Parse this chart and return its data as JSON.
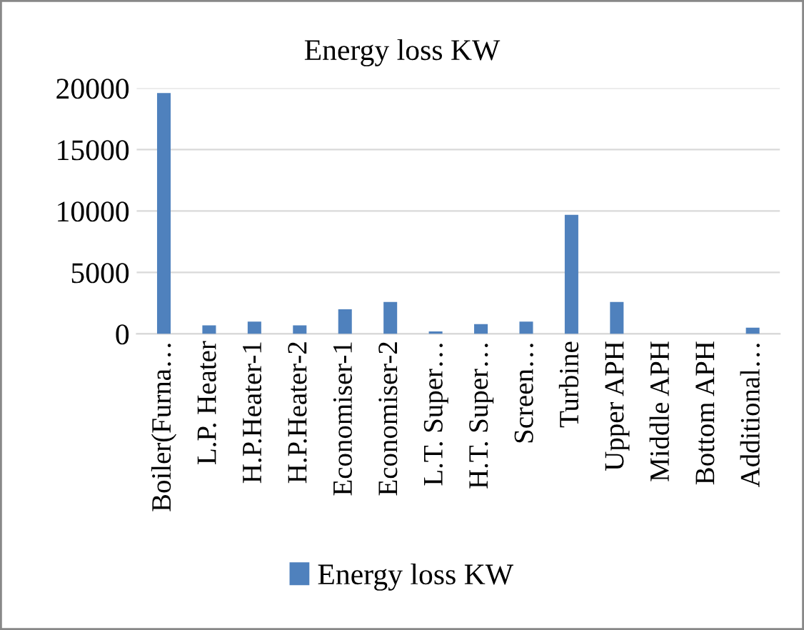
{
  "chart_data": {
    "type": "bar",
    "title": "Energy loss KW",
    "categories": [
      "Boiler(Furna…",
      "L.P. Heater",
      "H.P.Heater-1",
      "H.P.Heater-2",
      "Economiser-1",
      "Economiser-2",
      "L.T. Super…",
      "H.T. Super…",
      "Screen…",
      "Turbine",
      "Upper APH",
      "Middle APH",
      "Bottom APH",
      "Additional…"
    ],
    "series": [
      {
        "name": "Energy loss KW",
        "color": "#4f81bd",
        "values": [
          19600,
          700,
          1000,
          700,
          2000,
          2600,
          200,
          800,
          1000,
          9700,
          2600,
          0,
          0,
          500
        ]
      }
    ],
    "ylim": [
      0,
      20000
    ],
    "yticks": [
      0,
      5000,
      10000,
      15000,
      20000
    ],
    "grid": "y",
    "legend": "bottom"
  }
}
